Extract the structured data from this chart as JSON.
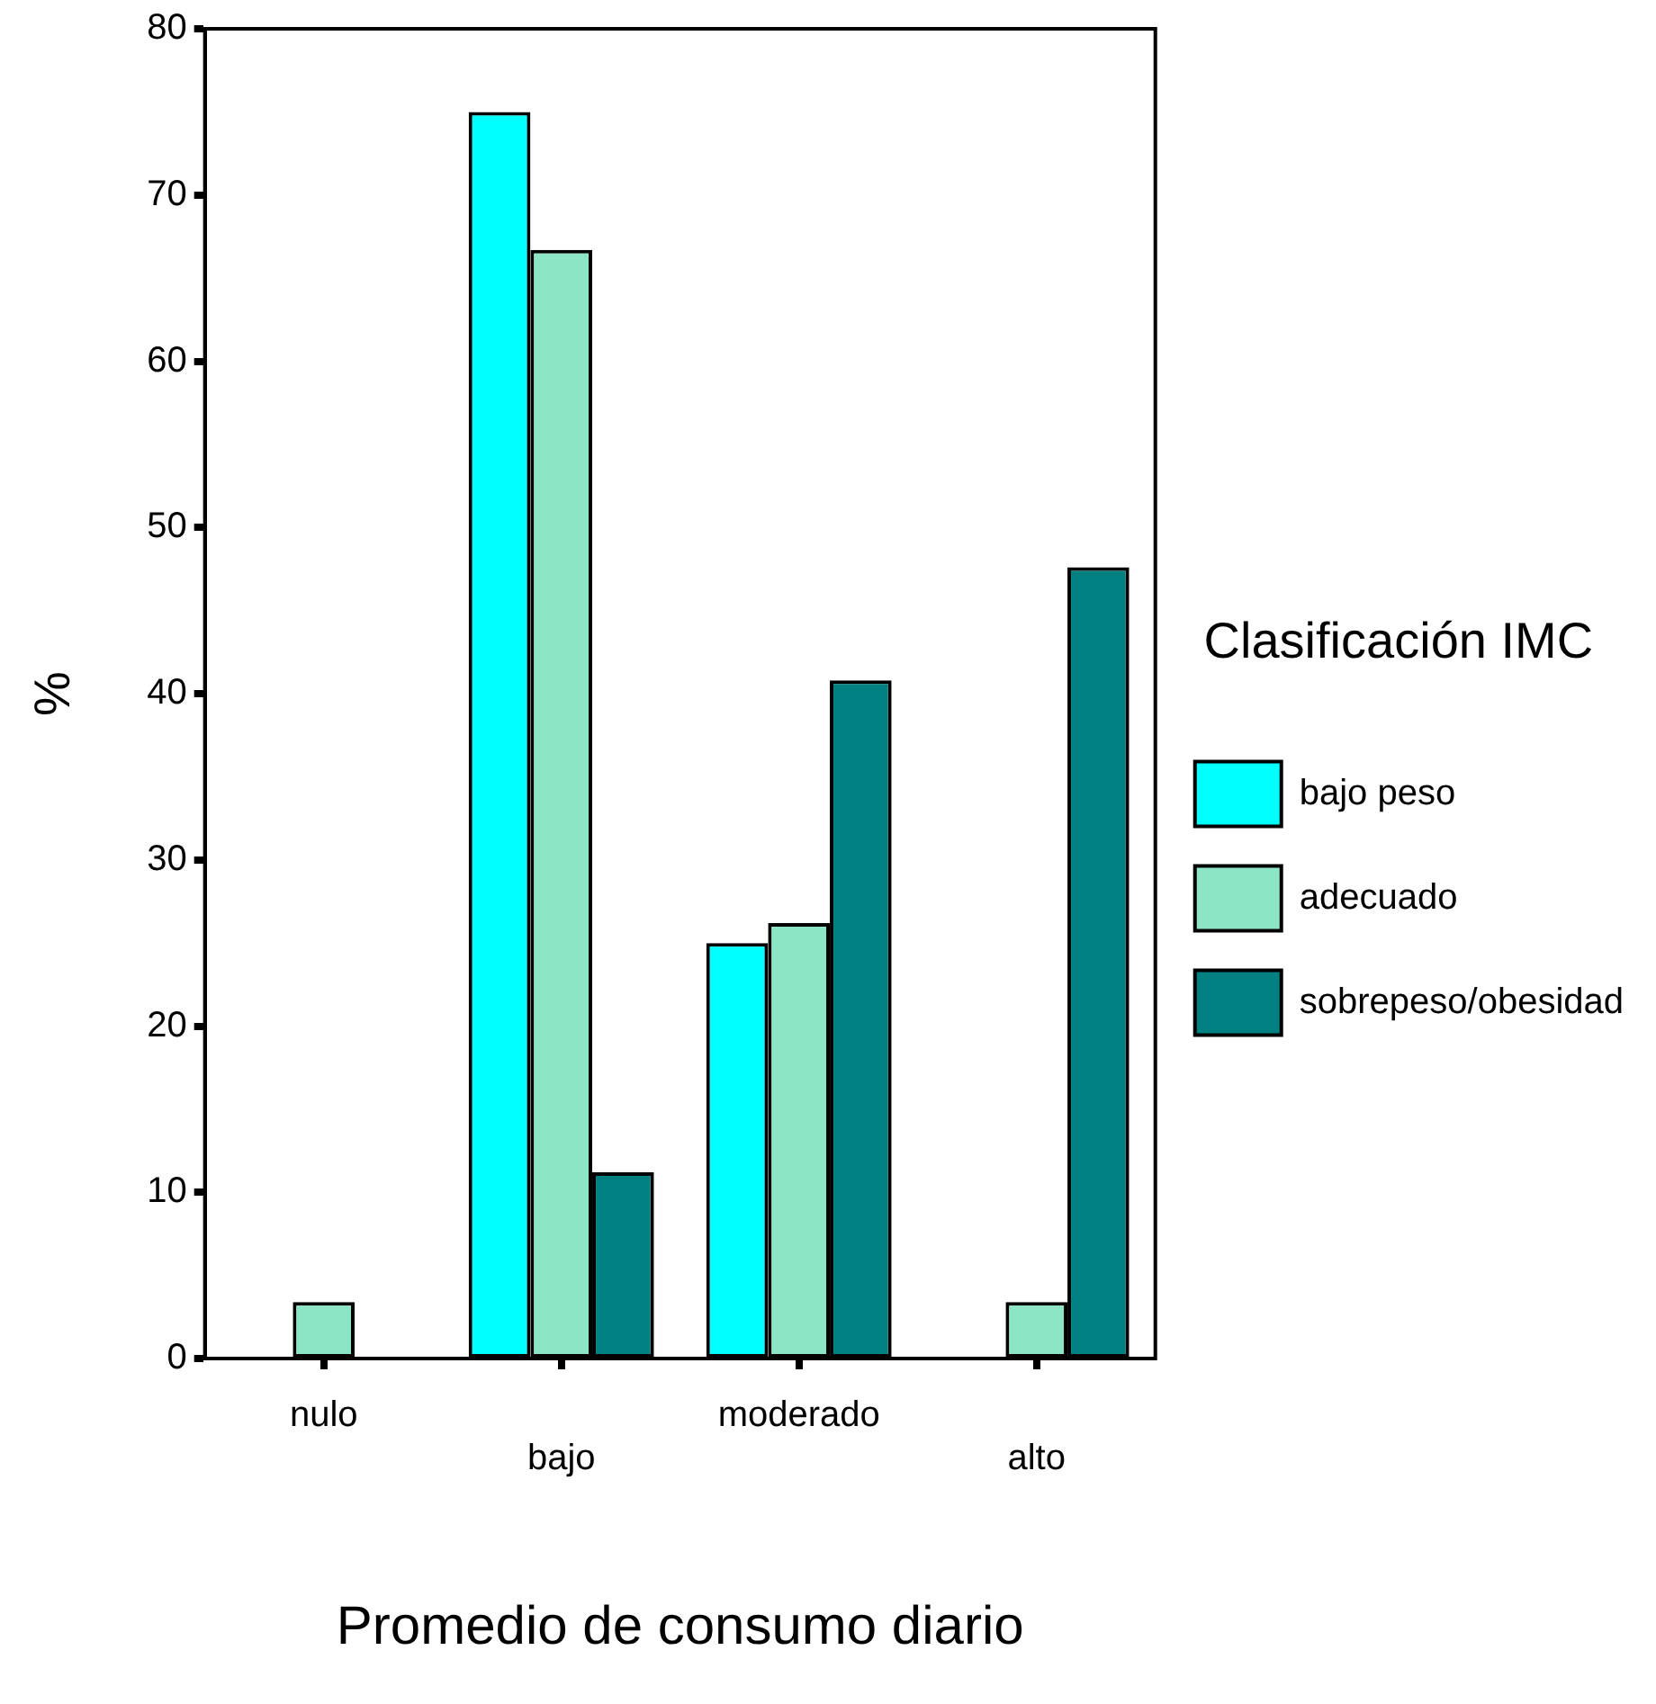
{
  "chart_data": {
    "type": "bar",
    "xlabel": "Promedio de consumo diario",
    "ylabel": "%",
    "legend_title": "Clasificación IMC",
    "legend": "right",
    "grid": false,
    "categories": [
      "nulo",
      "bajo",
      "moderado",
      "alto"
    ],
    "ylim": [
      0,
      80
    ],
    "yticks": [
      0,
      10,
      20,
      30,
      40,
      50,
      60,
      70,
      80
    ],
    "series": [
      {
        "name": "bajo peso",
        "color": "#00ffff",
        "values": [
          0,
          75,
          25,
          0
        ]
      },
      {
        "name": "adecuado",
        "color": "#8ce6c6",
        "values": [
          3.4,
          66.7,
          26.2,
          3.4
        ]
      },
      {
        "name": "sobrepeso/obesidad",
        "color": "#008080",
        "values": [
          0,
          11.2,
          40.8,
          47.6
        ]
      }
    ]
  }
}
